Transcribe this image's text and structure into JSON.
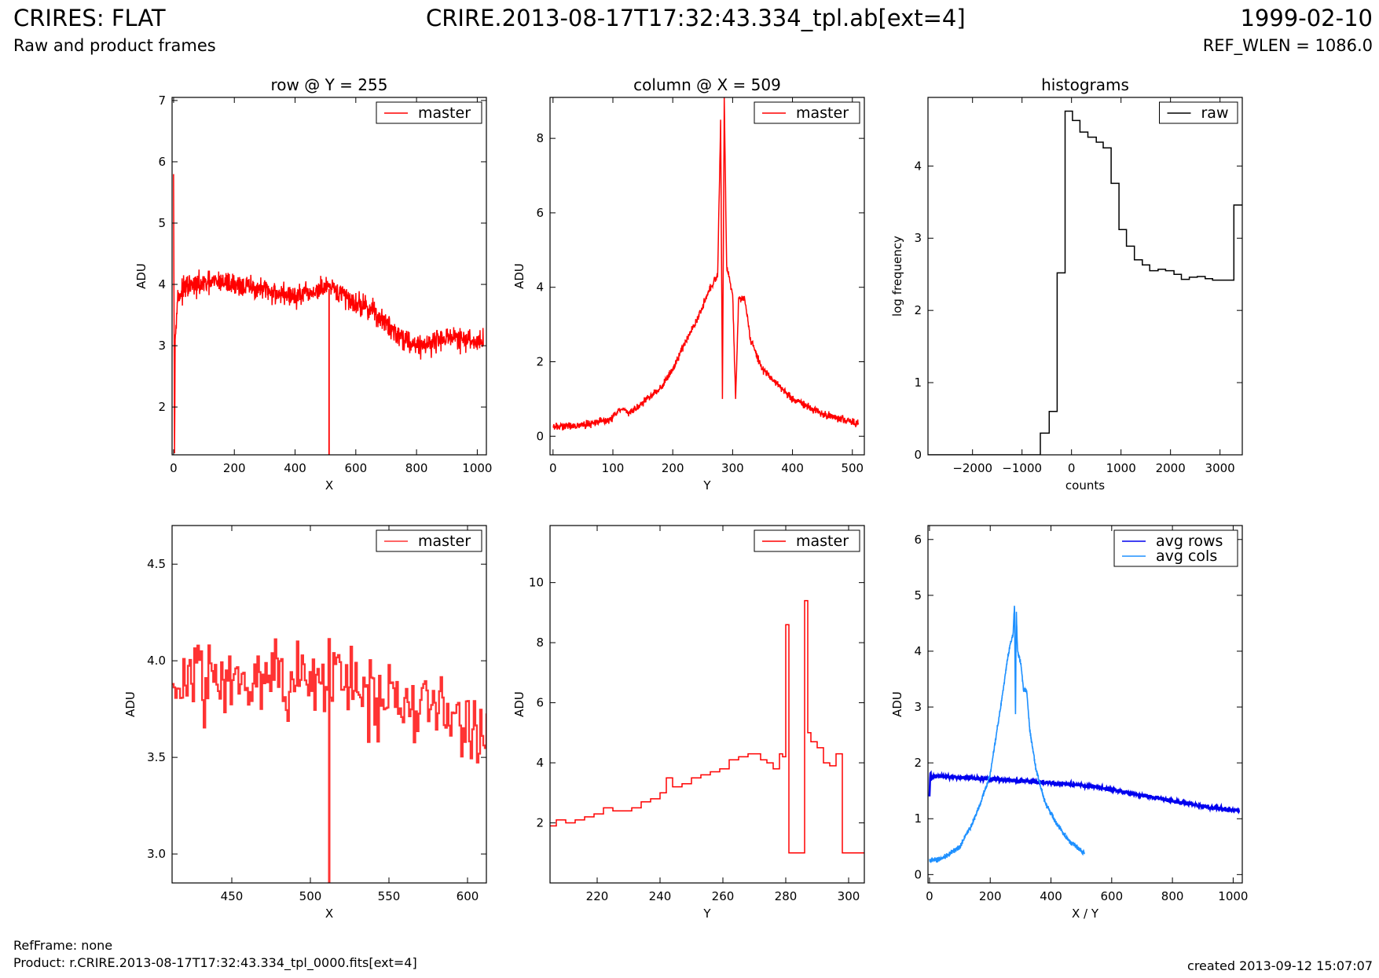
{
  "header": {
    "title": "CRIRES: FLAT",
    "subtitle": "Raw and product frames",
    "file": "CRIRE.2013-08-17T17:32:43.334_tpl.ab[ext=4]",
    "date": "1999-02-10",
    "ref_wlen": "REF_WLEN = 1086.0"
  },
  "footer": {
    "ref_frame": "RefFrame: none",
    "product": "Product: r.CRIRE.2013-08-17T17:32:43.334_tpl_0000.fits[ext=4]",
    "created": "created 2013-09-12 15:07:07"
  },
  "colors": {
    "master": "#ff0000",
    "master_zoom": "#ff3333",
    "raw": "#000000",
    "avg_rows": "#0000ee",
    "avg_cols": "#1e90ff"
  },
  "chart_data": [
    {
      "type": "line",
      "title": "row @ Y = 255",
      "xlabel": "X",
      "ylabel": "ADU",
      "xlim": [
        -5,
        1030
      ],
      "ylim": [
        1.22,
        7.05
      ],
      "xticks": [
        0,
        200,
        400,
        600,
        800,
        1000
      ],
      "yticks": [
        2,
        3,
        4,
        5,
        6,
        7
      ],
      "legend": "top-right",
      "series": [
        {
          "name": "master",
          "color": "#ff0000",
          "noise": 0.13,
          "x": [
            0,
            3,
            5,
            8,
            15,
            40,
            100,
            150,
            200,
            300,
            400,
            450,
            500,
            550,
            600,
            650,
            700,
            750,
            800,
            850,
            900,
            950,
            1000,
            1020
          ],
          "y": [
            5.8,
            1.3,
            3.0,
            3.5,
            3.8,
            3.95,
            4.0,
            4.05,
            4.0,
            3.9,
            3.8,
            3.85,
            3.95,
            3.85,
            3.7,
            3.6,
            3.35,
            3.15,
            3.0,
            3.05,
            3.15,
            3.1,
            3.05,
            3.1
          ],
          "spikes": [
            {
              "x": 512,
              "y": 1.22
            }
          ]
        }
      ]
    },
    {
      "type": "line",
      "title": "column @ X = 509",
      "xlabel": "Y",
      "ylabel": "ADU",
      "xlim": [
        -5,
        520
      ],
      "ylim": [
        -0.5,
        9.1
      ],
      "xticks": [
        0,
        100,
        200,
        300,
        400,
        500
      ],
      "yticks": [
        0,
        2,
        4,
        6,
        8
      ],
      "legend": "top-right",
      "series": [
        {
          "name": "master",
          "color": "#ff0000",
          "noise": 0.07,
          "x": [
            0,
            50,
            95,
            100,
            110,
            120,
            125,
            150,
            180,
            200,
            220,
            240,
            260,
            275,
            280,
            283,
            286,
            290,
            295,
            300,
            305,
            310,
            320,
            330,
            350,
            400,
            450,
            510
          ],
          "y": [
            0.25,
            0.3,
            0.45,
            0.5,
            0.7,
            0.7,
            0.6,
            0.9,
            1.3,
            1.8,
            2.5,
            3.1,
            3.9,
            4.3,
            8.5,
            1.0,
            9.1,
            4.6,
            4.2,
            3.8,
            1.0,
            3.7,
            3.7,
            2.6,
            1.8,
            1.0,
            0.6,
            0.35
          ]
        }
      ]
    },
    {
      "type": "line",
      "title": "histograms",
      "xlabel": "counts",
      "ylabel": "log frequency",
      "xlim": [
        -2900,
        3450
      ],
      "ylim": [
        0,
        4.95
      ],
      "xticks": [
        -2000,
        -1000,
        0,
        1000,
        2000,
        3000
      ],
      "xtick_labels": [
        "−2000",
        "−1000",
        "0",
        "1000",
        "2000",
        "3000"
      ],
      "yticks": [
        0,
        1,
        2,
        3,
        4
      ],
      "legend": "top-right",
      "series": [
        {
          "name": "raw",
          "color": "#000000",
          "step": true,
          "x": [
            -2900,
            -630,
            -630,
            -450,
            -450,
            -290,
            -290,
            -130,
            -130,
            20,
            20,
            170,
            170,
            330,
            330,
            500,
            500,
            640,
            640,
            800,
            800,
            960,
            960,
            1110,
            1110,
            1270,
            1270,
            1430,
            1430,
            1580,
            1580,
            1750,
            1750,
            1900,
            1900,
            2070,
            2070,
            2220,
            2220,
            2380,
            2380,
            2540,
            2540,
            2700,
            2700,
            2850,
            2850,
            3020,
            3020,
            3280,
            3280,
            3450
          ],
          "y": [
            0,
            0,
            0.3,
            0.3,
            0.6,
            0.6,
            2.52,
            2.52,
            4.76,
            4.76,
            4.63,
            4.63,
            4.47,
            4.47,
            4.4,
            4.4,
            4.33,
            4.33,
            4.25,
            4.25,
            3.76,
            3.76,
            3.12,
            3.12,
            2.89,
            2.89,
            2.7,
            2.7,
            2.63,
            2.63,
            2.55,
            2.55,
            2.57,
            2.57,
            2.55,
            2.55,
            2.5,
            2.5,
            2.43,
            2.43,
            2.46,
            2.46,
            2.47,
            2.47,
            2.44,
            2.44,
            2.42,
            2.42,
            2.42,
            2.42,
            3.46,
            3.46
          ]
        }
      ]
    },
    {
      "type": "line",
      "xlabel": "X",
      "ylabel": "ADU",
      "xlim": [
        412,
        612
      ],
      "ylim": [
        2.85,
        4.7
      ],
      "xticks": [
        450,
        500,
        550,
        600
      ],
      "yticks": [
        3.0,
        3.5,
        4.0,
        4.5
      ],
      "ytick_labels": [
        "3.0",
        "3.5",
        "4.0",
        "4.5"
      ],
      "legend": "top-right",
      "series": [
        {
          "name": "master",
          "color": "#ff3333",
          "step": true,
          "noise": 0.14,
          "n": 200,
          "x": [
            412,
            450,
            500,
            530,
            560,
            590,
            612
          ],
          "y": [
            3.88,
            3.95,
            3.92,
            3.85,
            3.78,
            3.7,
            3.6
          ],
          "spikes": [
            {
              "x": 512,
              "y": 2.85
            }
          ]
        }
      ]
    },
    {
      "type": "line",
      "xlabel": "Y",
      "ylabel": "ADU",
      "xlim": [
        205,
        305
      ],
      "ylim": [
        0,
        11.9
      ],
      "xticks": [
        220,
        240,
        260,
        280,
        300
      ],
      "yticks": [
        2,
        4,
        6,
        8,
        10
      ],
      "legend": "top-right",
      "series": [
        {
          "name": "master",
          "color": "#ff0000",
          "step": true,
          "x": [
            205,
            207,
            210,
            213,
            216,
            219,
            222,
            225,
            228,
            231,
            234,
            237,
            240,
            242,
            244,
            247,
            250,
            253,
            256,
            259,
            262,
            265,
            268,
            270,
            272,
            274,
            276,
            278,
            279,
            280,
            281,
            286,
            287,
            288,
            290,
            292,
            294,
            296,
            298,
            305
          ],
          "y": [
            1.9,
            2.1,
            2.0,
            2.1,
            2.2,
            2.3,
            2.5,
            2.4,
            2.4,
            2.5,
            2.7,
            2.8,
            3.0,
            3.5,
            3.2,
            3.3,
            3.5,
            3.6,
            3.7,
            3.8,
            4.1,
            4.2,
            4.3,
            4.3,
            4.1,
            4.0,
            3.8,
            4.3,
            4.2,
            8.6,
            1.0,
            9.4,
            5.0,
            4.7,
            4.5,
            4.0,
            3.9,
            4.3,
            1.0,
            1.0
          ]
        }
      ]
    },
    {
      "type": "line",
      "xlabel": "X / Y",
      "ylabel": "ADU",
      "xlim": [
        -5,
        1030
      ],
      "ylim": [
        -0.15,
        6.25
      ],
      "xticks": [
        0,
        200,
        400,
        600,
        800,
        1000
      ],
      "yticks": [
        0,
        1,
        2,
        3,
        4,
        5,
        6
      ],
      "legend": "top-right",
      "series": [
        {
          "name": "avg rows",
          "color": "#0000ee",
          "noise": 0.025,
          "width": 2.6,
          "x": [
            0,
            3,
            6,
            10,
            20,
            100,
            200,
            300,
            400,
            500,
            530,
            600,
            700,
            800,
            900,
            1020
          ],
          "y": [
            1.4,
            1.85,
            1.7,
            1.78,
            1.76,
            1.74,
            1.71,
            1.68,
            1.64,
            1.6,
            1.58,
            1.52,
            1.42,
            1.32,
            1.22,
            1.14
          ]
        },
        {
          "name": "avg cols",
          "color": "#1e90ff",
          "noise": 0.03,
          "width": 1.6,
          "x": [
            0,
            30,
            60,
            100,
            140,
            170,
            200,
            220,
            240,
            255,
            265,
            275,
            280,
            283,
            286,
            290,
            295,
            300,
            310,
            320,
            330,
            350,
            380,
            420,
            460,
            510
          ],
          "y": [
            0.25,
            0.27,
            0.35,
            0.5,
            0.9,
            1.3,
            1.8,
            2.5,
            3.2,
            3.8,
            4.1,
            4.3,
            4.85,
            2.8,
            4.7,
            4.0,
            3.9,
            3.8,
            3.3,
            3.3,
            2.6,
            1.9,
            1.3,
            0.9,
            0.6,
            0.38
          ]
        }
      ]
    }
  ]
}
